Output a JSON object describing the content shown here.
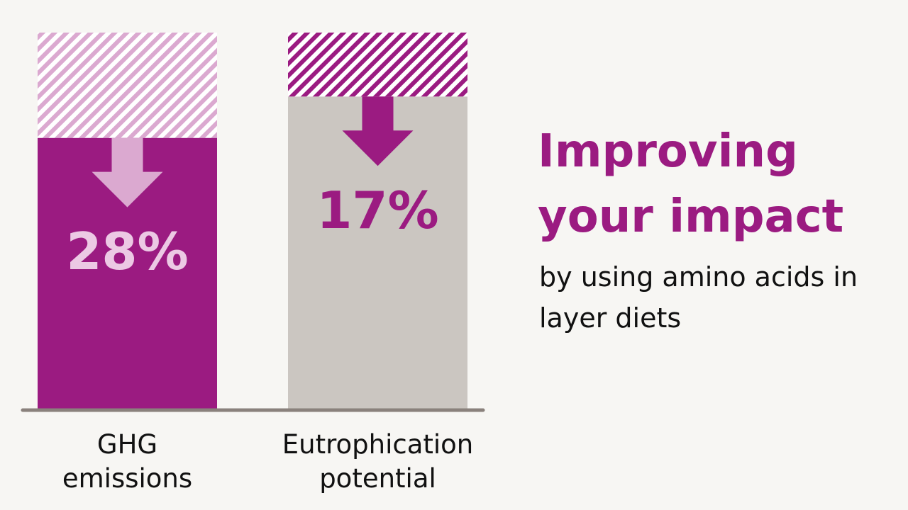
{
  "chart_data": {
    "type": "reduction-bar",
    "title": "Improving your impact",
    "subtitle": "by using amino acids in layer diets",
    "categories": [
      "GHG emissions",
      "Eutrophication potential"
    ],
    "values": [
      28,
      17
    ],
    "value_labels": [
      "28%",
      "17%"
    ],
    "ylim": [
      0,
      100
    ],
    "bar_colors": [
      "#9b1b81",
      "#cbc6c1"
    ],
    "hatch_colors": [
      "#dba9d0",
      "#9b1b81"
    ],
    "arrow_colors": [
      "#dba9d0",
      "#9b1b81"
    ],
    "label_colors": [
      "#ecc9e4",
      "#9b1b81"
    ],
    "title_color": "#9b1b81"
  }
}
